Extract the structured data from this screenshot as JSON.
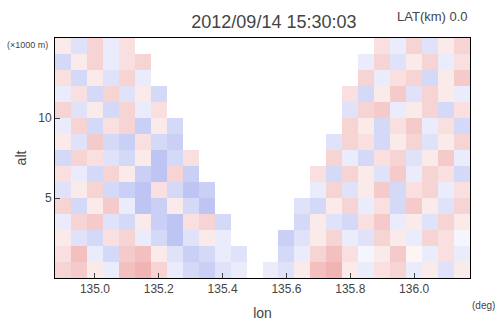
{
  "chart_data": {
    "type": "heatmap",
    "title": "2012/09/14 15:30:03",
    "annotations": [
      "LAT(km) 0.0",
      "(×1000 m)",
      "(deg)"
    ],
    "xlabel": "lon",
    "ylabel": "alt",
    "x": [
      134.9,
      134.95,
      135,
      135.05,
      135.1,
      135.15,
      135.2,
      135.25,
      135.3,
      135.35,
      135.4,
      135.45,
      135.5,
      135.55,
      135.6,
      135.65,
      135.7,
      135.75,
      135.8,
      135.85,
      135.9,
      135.95,
      136,
      136.05,
      136.1,
      136.15
    ],
    "y": [
      0.5,
      1.5,
      2.5,
      3.5,
      4.5,
      5.5,
      6.5,
      7.5,
      8.5,
      9.5,
      10.5,
      11.5,
      12.5,
      13.5,
      14.5
    ],
    "z": [
      [
        0.2,
        0.25,
        0.1,
        -0.1,
        0.3,
        0.35,
        0.2,
        -0.1,
        -0.2,
        -0.25,
        -0.15,
        -0.1,
        null,
        -0.1,
        -0.15,
        0.1,
        0.3,
        0.35,
        0.1,
        -0.1,
        0.15,
        0.2,
        -0.1,
        0.1,
        -0.15,
        0.1
      ],
      [
        0.15,
        0.3,
        -0.1,
        -0.2,
        0.25,
        0.3,
        0.1,
        -0.15,
        -0.25,
        -0.2,
        -0.1,
        -0.15,
        null,
        null,
        -0.2,
        -0.1,
        0.2,
        0.3,
        0.15,
        -0.05,
        0.1,
        0.25,
        0.05,
        -0.1,
        0.15,
        -0.1
      ],
      [
        0.1,
        -0.15,
        -0.2,
        0.15,
        0.2,
        -0.1,
        -0.2,
        -0.3,
        -0.15,
        0.1,
        -0.1,
        null,
        null,
        null,
        -0.25,
        -0.15,
        0.1,
        0.2,
        -0.1,
        -0.15,
        0.2,
        0.1,
        -0.1,
        0.2,
        0.15,
        -0.05
      ],
      [
        -0.1,
        0.2,
        0.25,
        -0.15,
        -0.2,
        0.1,
        -0.25,
        -0.3,
        0.15,
        0.2,
        -0.2,
        null,
        null,
        null,
        null,
        -0.2,
        0.1,
        -0.15,
        -0.2,
        0.15,
        0.25,
        -0.1,
        0.1,
        -0.15,
        0.2,
        0.1
      ],
      [
        0.2,
        -0.2,
        0.1,
        0.25,
        -0.1,
        -0.3,
        -0.25,
        0.1,
        -0.2,
        -0.3,
        null,
        null,
        null,
        null,
        null,
        -0.15,
        -0.2,
        0.1,
        0.2,
        -0.1,
        0.15,
        -0.2,
        0.25,
        0.1,
        -0.15,
        0.2
      ],
      [
        -0.15,
        0.1,
        0.2,
        -0.2,
        -0.25,
        -0.3,
        0.15,
        -0.2,
        -0.3,
        -0.25,
        null,
        null,
        null,
        null,
        null,
        null,
        -0.1,
        0.2,
        -0.15,
        0.1,
        0.25,
        -0.2,
        0.15,
        0.2,
        -0.1,
        0.15
      ],
      [
        0.15,
        -0.1,
        -0.2,
        0.2,
        0.1,
        -0.25,
        -0.3,
        0.2,
        -0.25,
        null,
        null,
        null,
        null,
        null,
        null,
        null,
        0.15,
        -0.2,
        0.2,
        0.1,
        -0.15,
        0.25,
        -0.1,
        0.2,
        0.15,
        -0.2
      ],
      [
        -0.2,
        0.2,
        0.15,
        -0.15,
        -0.2,
        0.1,
        -0.3,
        -0.2,
        0.15,
        null,
        null,
        null,
        null,
        null,
        null,
        null,
        null,
        0.2,
        -0.1,
        -0.2,
        0.15,
        0.2,
        -0.15,
        0.1,
        0.25,
        -0.1
      ],
      [
        0.1,
        -0.15,
        0.25,
        -0.2,
        -0.25,
        0.15,
        -0.2,
        -0.25,
        null,
        null,
        null,
        null,
        null,
        null,
        null,
        null,
        null,
        -0.15,
        0.2,
        0.15,
        -0.2,
        0.1,
        0.2,
        -0.15,
        0.1,
        0.2
      ],
      [
        -0.1,
        0.2,
        -0.2,
        0.15,
        0.2,
        -0.25,
        0.1,
        -0.2,
        null,
        null,
        null,
        null,
        null,
        null,
        null,
        null,
        null,
        null,
        0.2,
        0.1,
        -0.2,
        0.15,
        0.25,
        -0.1,
        0.15,
        -0.2
      ],
      [
        0.2,
        -0.15,
        0.1,
        -0.2,
        0.2,
        -0.1,
        0.15,
        null,
        null,
        null,
        null,
        null,
        null,
        null,
        null,
        null,
        null,
        null,
        -0.15,
        0.2,
        0.25,
        -0.1,
        0.1,
        0.2,
        -0.2,
        0.15
      ],
      [
        -0.1,
        0.15,
        -0.2,
        0.2,
        -0.15,
        0.1,
        -0.2,
        null,
        null,
        null,
        null,
        null,
        null,
        null,
        null,
        null,
        null,
        null,
        0.15,
        -0.2,
        0.1,
        0.25,
        -0.15,
        0.2,
        0.1,
        -0.1
      ],
      [
        0.15,
        -0.2,
        0.1,
        -0.15,
        0.2,
        -0.1,
        null,
        null,
        null,
        null,
        null,
        null,
        null,
        null,
        null,
        null,
        null,
        null,
        null,
        0.2,
        -0.1,
        0.15,
        0.2,
        -0.2,
        0.1,
        0.25
      ],
      [
        -0.2,
        0.1,
        0.2,
        -0.1,
        0.15,
        0.2,
        null,
        null,
        null,
        null,
        null,
        null,
        null,
        null,
        null,
        null,
        null,
        null,
        null,
        -0.1,
        0.2,
        -0.15,
        0.1,
        0.2,
        -0.1,
        0.15
      ],
      [
        0.1,
        -0.15,
        0.2,
        -0.1,
        0.15,
        null,
        null,
        null,
        null,
        null,
        null,
        null,
        null,
        null,
        null,
        null,
        null,
        null,
        null,
        null,
        0.15,
        -0.1,
        0.2,
        -0.15,
        0.1,
        0.2
      ]
    ],
    "zlim": [
      -1,
      1
    ],
    "xlim": [
      134.875,
      136.175
    ],
    "ylim": [
      0,
      15
    ],
    "xticks": [
      {
        "value": 135,
        "label": "135.0"
      },
      135.2,
      135.4,
      135.6,
      135.8,
      {
        "value": 136,
        "label": "136.0"
      }
    ],
    "yticks": [
      5,
      10
    ]
  }
}
